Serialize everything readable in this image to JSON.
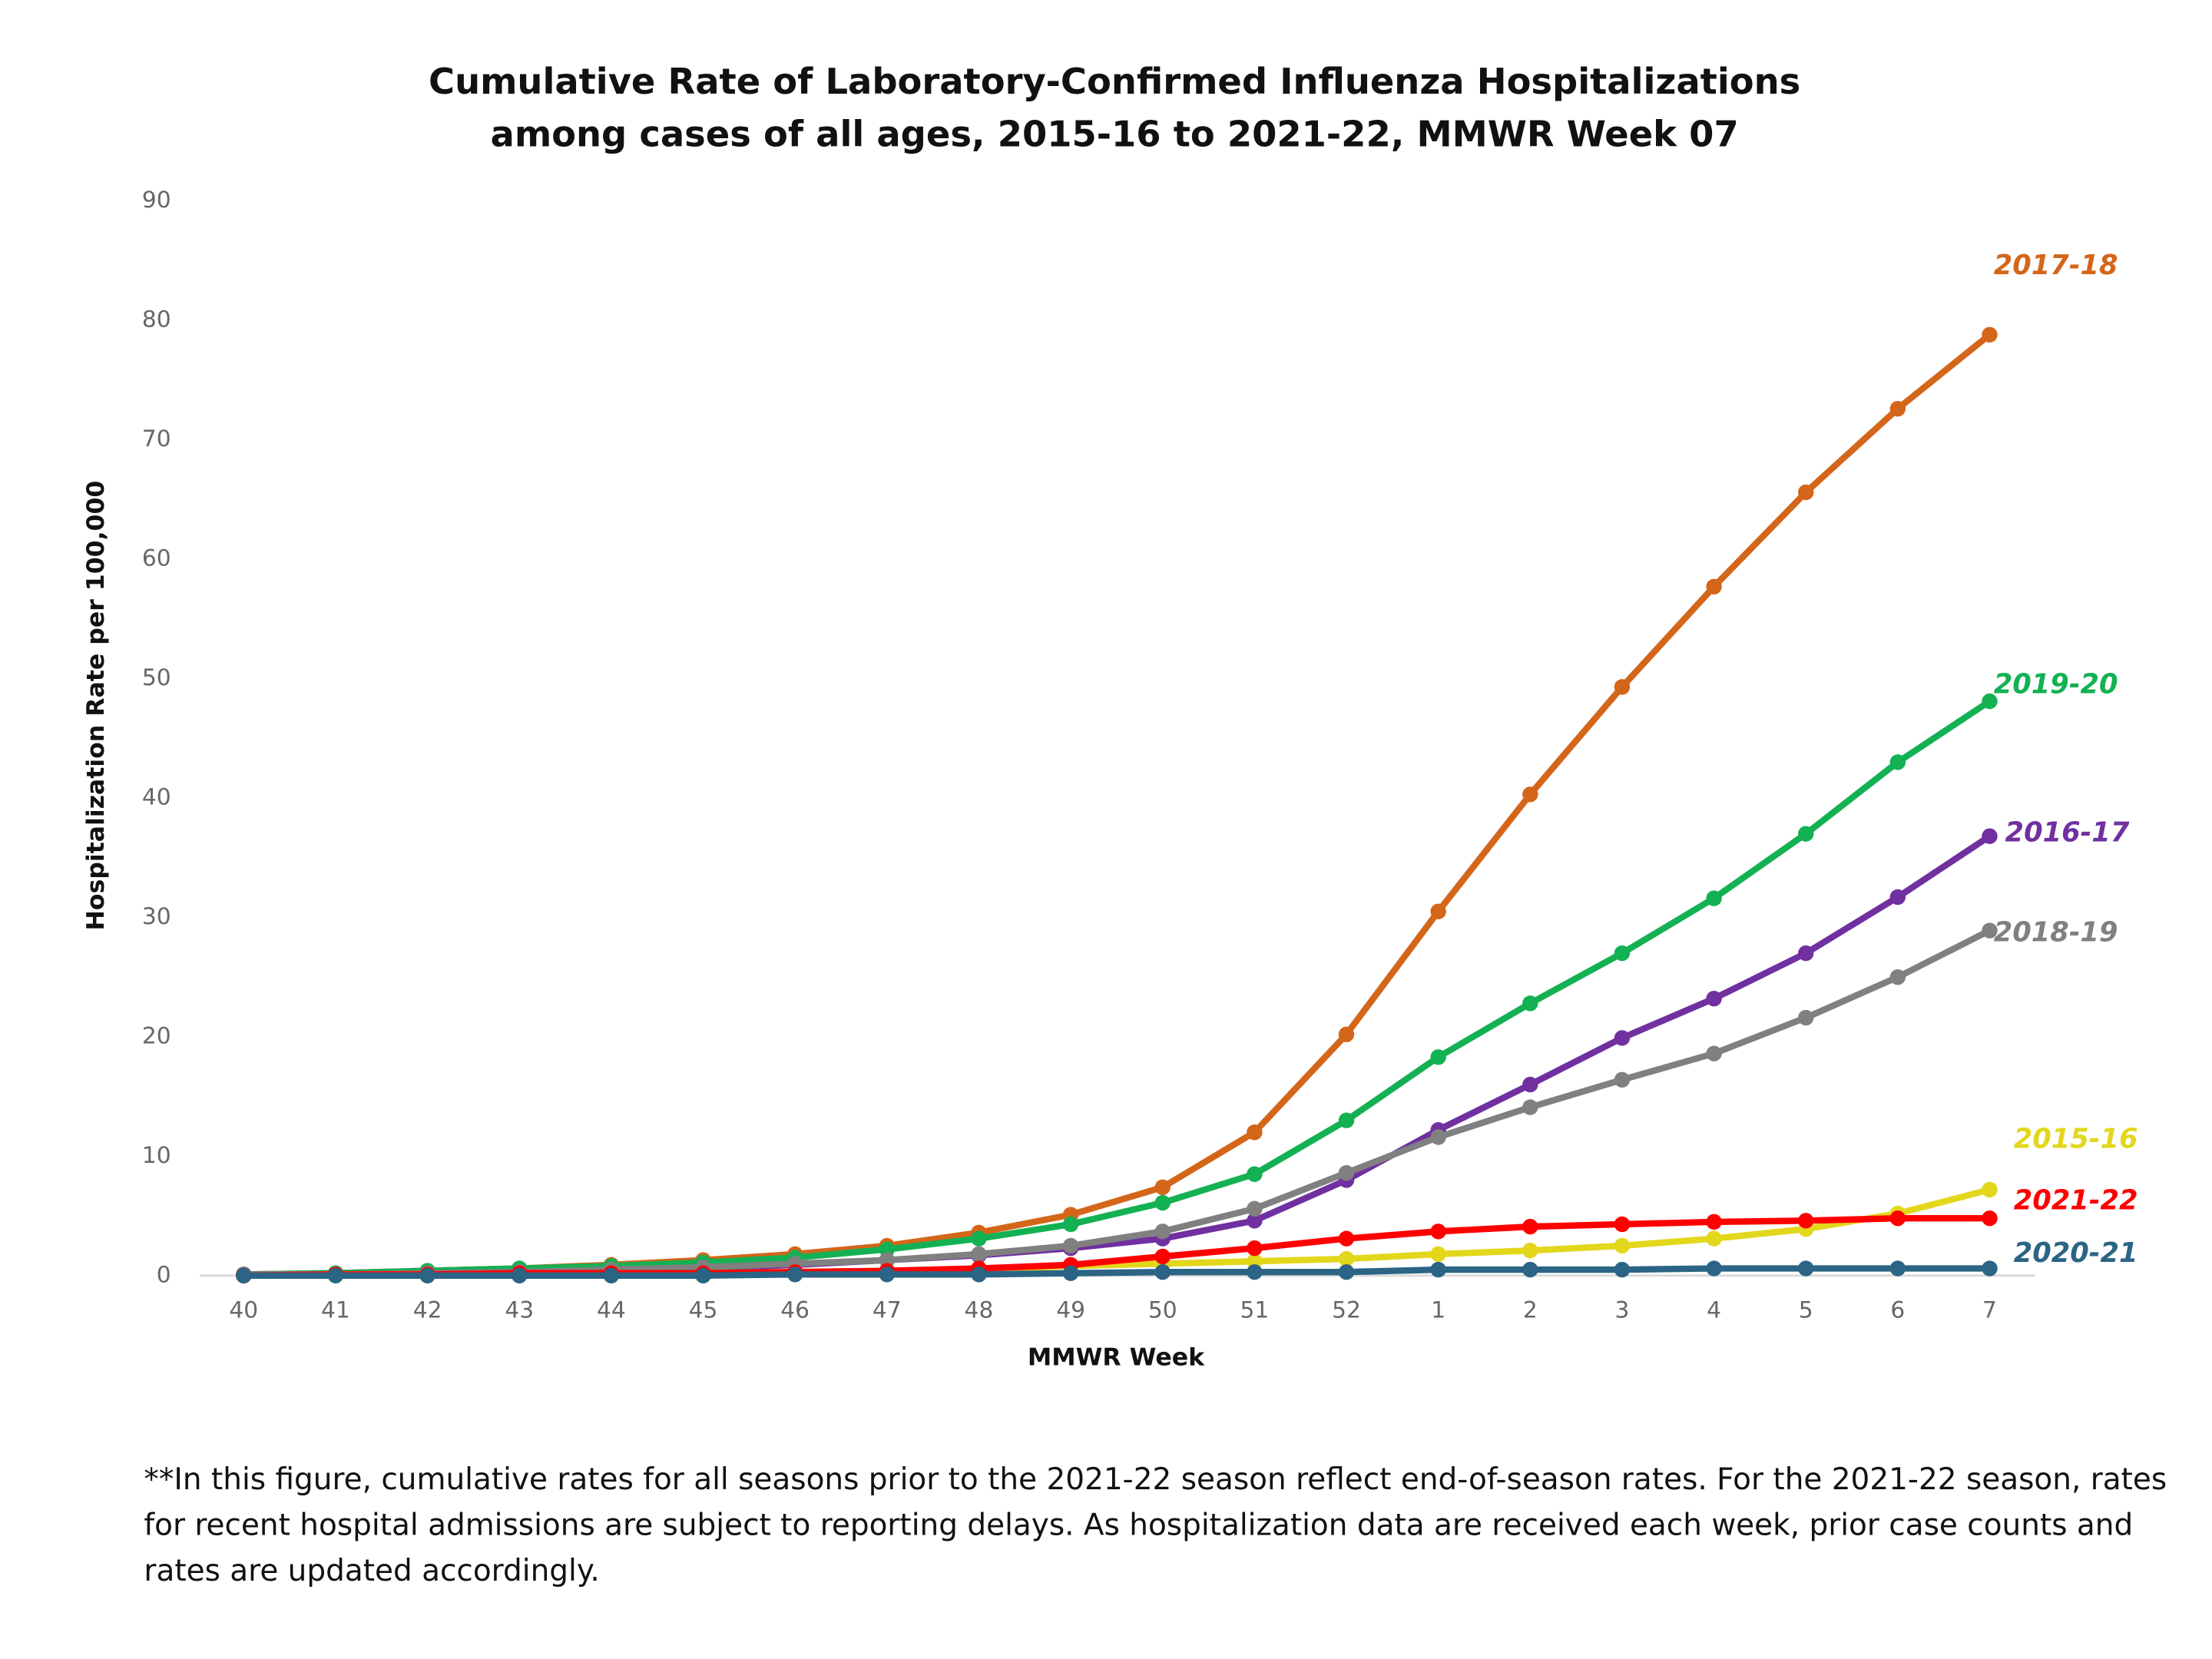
{
  "chart_data": {
    "type": "line",
    "title": [
      "Cumulative Rate of Laboratory-Confirmed Influenza Hospitalizations",
      "among cases of all ages, 2015-16 to 2021-22, MMWR  Week 07"
    ],
    "x_label": "MMWR Week",
    "y_label": "Hospitalization  Rate per 100,000",
    "categories": [
      "40",
      "41",
      "42",
      "43",
      "44",
      "45",
      "46",
      "47",
      "48",
      "49",
      "50",
      "51",
      "52",
      "1",
      "2",
      "3",
      "4",
      "5",
      "6",
      "7"
    ],
    "ylim": [
      0,
      90
    ],
    "yticks": [
      0,
      10,
      20,
      30,
      40,
      50,
      60,
      70,
      80,
      90
    ],
    "grid": false,
    "series": [
      {
        "name": "2017-18",
        "color": "#d4661a",
        "values": [
          0.1,
          0.2,
          0.4,
          0.6,
          0.9,
          1.3,
          1.8,
          2.5,
          3.6,
          5.1,
          7.4,
          12.0,
          20.2,
          30.5,
          40.3,
          49.3,
          57.7,
          65.6,
          72.6,
          78.8
        ]
      },
      {
        "name": "2019-20",
        "color": "#13b153",
        "values": [
          0.1,
          0.2,
          0.4,
          0.6,
          0.8,
          1.1,
          1.5,
          2.2,
          3.1,
          4.3,
          6.1,
          8.5,
          13.0,
          18.3,
          22.8,
          27.0,
          31.6,
          37.0,
          43.0,
          48.1
        ]
      },
      {
        "name": "2016-17",
        "color": "#7030a0",
        "values": [
          0.1,
          0.1,
          0.2,
          0.3,
          0.4,
          0.6,
          0.9,
          1.3,
          1.7,
          2.3,
          3.1,
          4.6,
          8.0,
          12.2,
          16.0,
          19.9,
          23.2,
          27.0,
          31.7,
          36.8
        ]
      },
      {
        "name": "2018-19",
        "color": "#808080",
        "values": [
          0.1,
          0.1,
          0.2,
          0.3,
          0.5,
          0.7,
          1.0,
          1.3,
          1.8,
          2.5,
          3.7,
          5.6,
          8.6,
          11.6,
          14.1,
          16.4,
          18.6,
          21.6,
          25.0,
          28.9
        ]
      },
      {
        "name": "2015-16",
        "color": "#e3d71c",
        "values": [
          0.0,
          0.1,
          0.1,
          0.1,
          0.2,
          0.2,
          0.3,
          0.4,
          0.5,
          0.8,
          1.0,
          1.2,
          1.4,
          1.8,
          2.1,
          2.5,
          3.1,
          3.9,
          5.2,
          7.2
        ]
      },
      {
        "name": "2021-22",
        "color": "#ff0000",
        "values": [
          0.0,
          0.1,
          0.1,
          0.2,
          0.2,
          0.2,
          0.3,
          0.4,
          0.6,
          0.9,
          1.6,
          2.3,
          3.1,
          3.7,
          4.1,
          4.3,
          4.5,
          4.6,
          4.8,
          4.8
        ]
      },
      {
        "name": "2020-21",
        "color": "#2b6485",
        "values": [
          0.0,
          0.0,
          0.0,
          0.0,
          0.0,
          0.0,
          0.1,
          0.1,
          0.1,
          0.2,
          0.3,
          0.3,
          0.3,
          0.5,
          0.5,
          0.5,
          0.6,
          0.6,
          0.6,
          0.6
        ]
      }
    ],
    "note": "**In this figure, cumulative rates for all seasons prior to the 2021-22 season reflect end-of-season rates. For the 2021-22 season, rates for recent hospital admissions are subject to reporting delays. As hospitalization data are received each week, prior case counts and rates are updated accordingly."
  }
}
